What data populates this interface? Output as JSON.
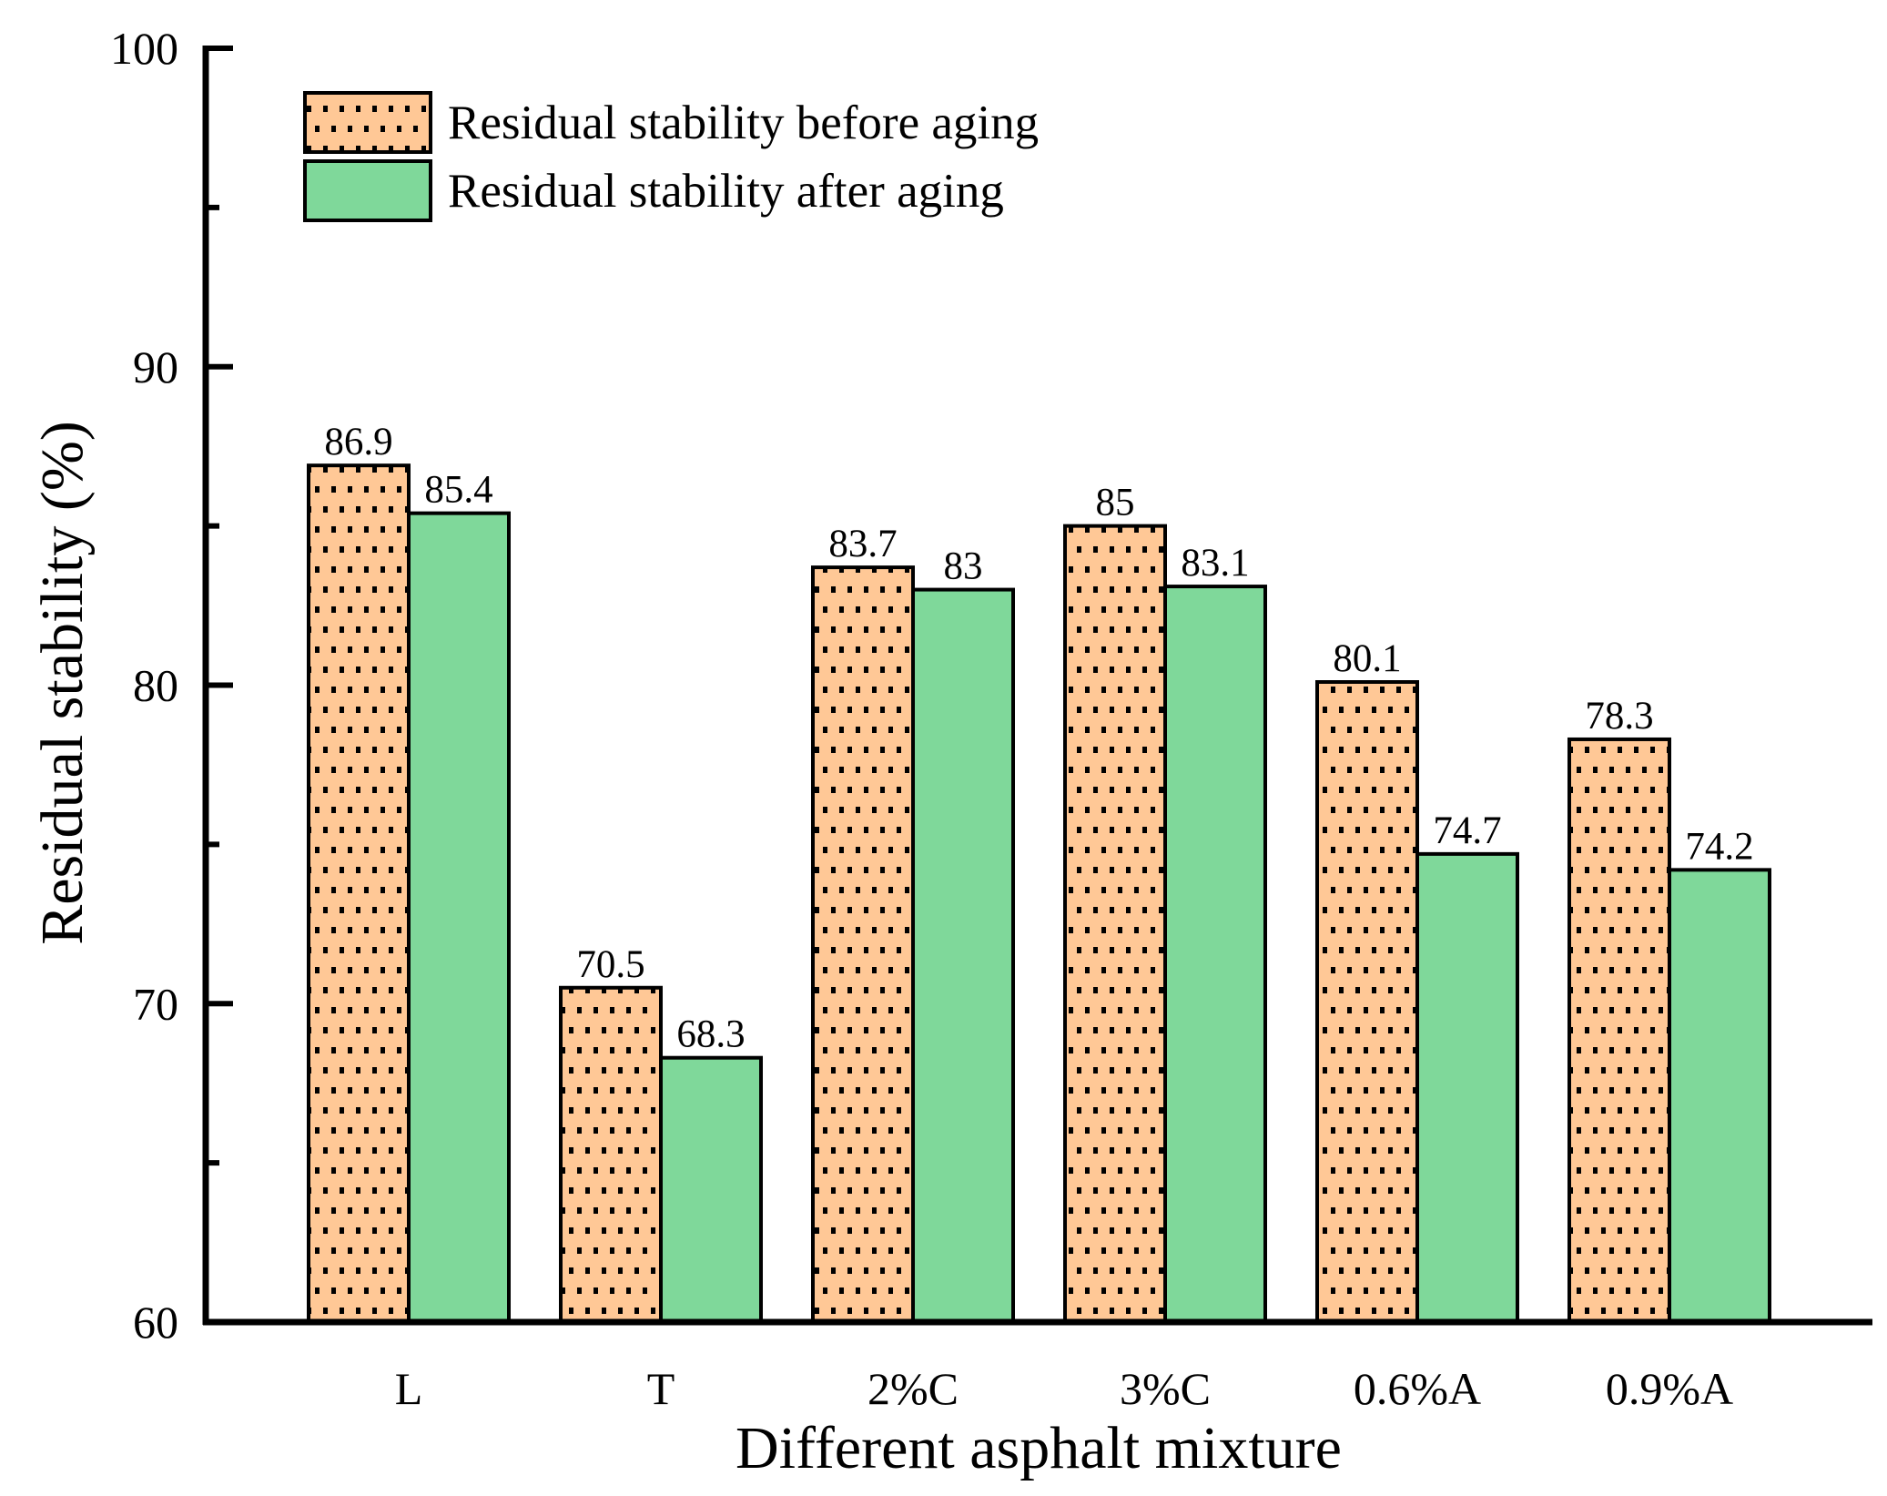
{
  "chart_data": {
    "type": "bar",
    "title": "",
    "xlabel": "Different asphalt mixture",
    "ylabel": "Residual stability (%)",
    "categories": [
      "L",
      "T",
      "2%C",
      "3%C",
      "0.6%A",
      "0.9%A"
    ],
    "series": [
      {
        "name": "Residual stability before aging",
        "values": [
          86.9,
          70.5,
          83.7,
          85,
          80.1,
          78.3
        ],
        "labels": [
          "86.9",
          "70.5",
          "83.7",
          "85",
          "80.1",
          "78.3"
        ],
        "color": "#FFC896",
        "pattern": "dots"
      },
      {
        "name": "Residual stability after aging",
        "values": [
          85.4,
          68.3,
          83,
          83.1,
          74.7,
          74.2
        ],
        "labels": [
          "85.4",
          "68.3",
          "83",
          "83.1",
          "74.7",
          "74.2"
        ],
        "color": "#7FD89A",
        "pattern": "solid"
      }
    ],
    "ylim": [
      60,
      100
    ],
    "yticks": [
      "60",
      "70",
      "80",
      "90",
      "100"
    ],
    "grid": false,
    "legend_position": "top-left"
  }
}
